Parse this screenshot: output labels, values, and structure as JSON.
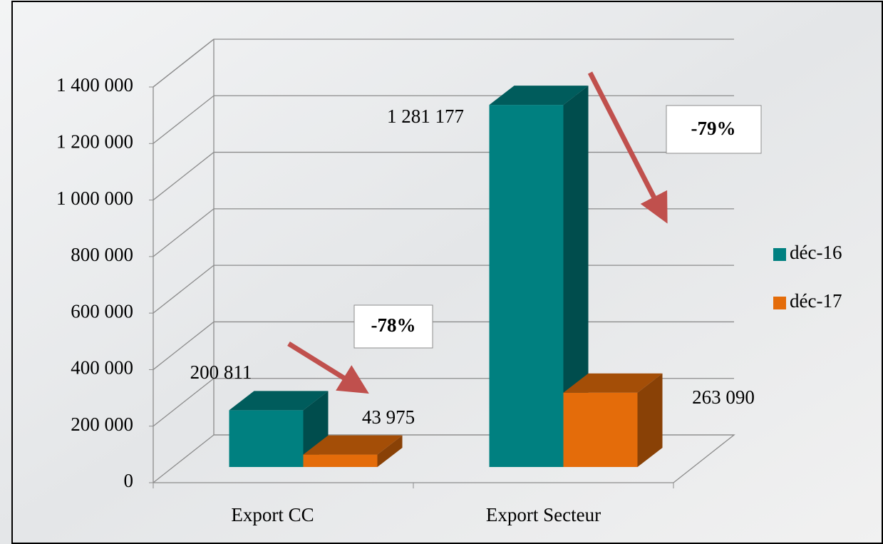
{
  "chart_data": {
    "type": "bar3d",
    "categories": [
      "Export CC",
      "Export Secteur"
    ],
    "series": [
      {
        "name": "déc-16",
        "color": "#008080",
        "values": [
          200811,
          1281177
        ],
        "value_labels": [
          "200 811",
          "1 281 177"
        ]
      },
      {
        "name": "déc-17",
        "color": "#e46c0a",
        "values": [
          43975,
          263090
        ],
        "value_labels": [
          "43 975",
          "263 090"
        ]
      }
    ],
    "ylim": [
      0,
      1400000
    ],
    "yticks": [
      0,
      {
        "value": 200000,
        "label": "200 000"
      },
      {
        "value": 400000,
        "label": "400 000"
      },
      {
        "value": 600000,
        "label": "600 000"
      },
      {
        "value": 800000,
        "label": "800 000"
      },
      {
        "value": 1000000,
        "label": "1 000 000"
      },
      {
        "value": 1200000,
        "label": "1 200 000"
      },
      {
        "value": 1400000,
        "label": "1 400 000"
      }
    ],
    "grid": true,
    "legend": "right",
    "annotations": [
      "-78%",
      "-79%"
    ]
  }
}
